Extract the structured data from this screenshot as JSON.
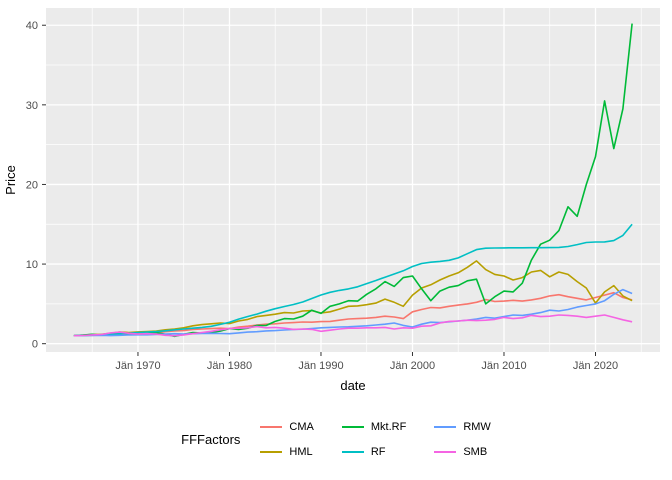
{
  "chart_data": {
    "type": "line",
    "xlabel": "date",
    "ylabel": "Price",
    "legend_title": "FFFactors",
    "x_tick_labels": [
      "Jän 1970",
      "Jän 1980",
      "Jän 1990",
      "Jän 2000",
      "Jän 2010",
      "Jän 2020"
    ],
    "x_tick_years": [
      1970,
      1980,
      1990,
      2000,
      2010,
      2020
    ],
    "x_minor_years": [
      1965,
      1975,
      1985,
      1995,
      2005,
      2015,
      2025
    ],
    "y_ticks": [
      0,
      10,
      20,
      30,
      40
    ],
    "y_minor": [
      5,
      15,
      25,
      35
    ],
    "panel_bg": "#EBEBEB",
    "grid_color": "#FFFFFF",
    "tick_label_color": "#4D4D4D",
    "axis_title_color": "#000000",
    "years": [
      1963,
      1964,
      1965,
      1966,
      1967,
      1968,
      1969,
      1970,
      1971,
      1972,
      1973,
      1974,
      1975,
      1976,
      1977,
      1978,
      1979,
      1980,
      1981,
      1982,
      1983,
      1984,
      1985,
      1986,
      1987,
      1988,
      1989,
      1990,
      1991,
      1992,
      1993,
      1994,
      1995,
      1996,
      1997,
      1998,
      1999,
      2000,
      2001,
      2002,
      2003,
      2004,
      2005,
      2006,
      2007,
      2008,
      2009,
      2010,
      2011,
      2012,
      2013,
      2014,
      2015,
      2016,
      2017,
      2018,
      2019,
      2020,
      2021,
      2022,
      2023,
      2024
    ],
    "series": [
      {
        "name": "CMA",
        "color": "#F8766D",
        "values": [
          1.0,
          1.02,
          1.05,
          1.1,
          1.12,
          1.2,
          1.25,
          1.32,
          1.33,
          1.36,
          1.5,
          1.6,
          1.65,
          1.8,
          1.85,
          1.9,
          1.95,
          1.88,
          2.1,
          2.2,
          2.35,
          2.45,
          2.5,
          2.6,
          2.65,
          2.72,
          2.7,
          2.78,
          2.8,
          2.95,
          3.1,
          3.15,
          3.2,
          3.3,
          3.45,
          3.35,
          3.15,
          4.0,
          4.3,
          4.55,
          4.5,
          4.7,
          4.85,
          5.0,
          5.2,
          5.55,
          5.3,
          5.35,
          5.45,
          5.35,
          5.5,
          5.7,
          6.0,
          6.15,
          5.9,
          5.7,
          5.5,
          5.8,
          6.1,
          6.4,
          5.8,
          5.5
        ]
      },
      {
        "name": "HML",
        "color": "#B79F00",
        "values": [
          1.0,
          1.08,
          1.15,
          1.18,
          1.3,
          1.45,
          1.4,
          1.48,
          1.52,
          1.58,
          1.75,
          1.85,
          2.0,
          2.25,
          2.4,
          2.5,
          2.6,
          2.52,
          2.85,
          3.05,
          3.4,
          3.55,
          3.7,
          3.9,
          3.85,
          4.1,
          4.15,
          3.85,
          4.0,
          4.35,
          4.7,
          4.75,
          4.9,
          5.1,
          5.6,
          5.2,
          4.7,
          6.1,
          7.0,
          7.4,
          8.0,
          8.5,
          8.9,
          9.6,
          10.4,
          9.3,
          8.7,
          8.5,
          8.0,
          8.3,
          9.0,
          9.2,
          8.4,
          9.0,
          8.7,
          7.8,
          7.0,
          5.1,
          6.5,
          7.3,
          6.0,
          5.4
        ]
      },
      {
        "name": "Mkt.RF",
        "color": "#00BA38",
        "values": [
          1.0,
          1.08,
          1.18,
          1.06,
          1.3,
          1.4,
          1.2,
          1.15,
          1.28,
          1.4,
          1.18,
          0.92,
          1.18,
          1.4,
          1.33,
          1.4,
          1.58,
          1.9,
          1.78,
          1.95,
          2.3,
          2.28,
          2.8,
          3.15,
          3.1,
          3.45,
          4.2,
          3.8,
          4.7,
          5.0,
          5.4,
          5.35,
          6.2,
          6.9,
          7.8,
          7.2,
          8.3,
          8.5,
          6.9,
          5.4,
          6.6,
          7.1,
          7.3,
          7.9,
          8.1,
          5.0,
          5.9,
          6.6,
          6.5,
          7.6,
          10.5,
          12.5,
          13.0,
          14.2,
          17.2,
          16.0,
          20.0,
          23.5,
          30.5,
          24.5,
          29.5,
          40.2
        ]
      },
      {
        "name": "RF",
        "color": "#00BFC4",
        "values": [
          1.0,
          1.04,
          1.08,
          1.13,
          1.18,
          1.24,
          1.32,
          1.4,
          1.46,
          1.52,
          1.62,
          1.75,
          1.85,
          1.94,
          2.04,
          2.19,
          2.42,
          2.69,
          3.09,
          3.42,
          3.72,
          4.08,
          4.4,
          4.67,
          4.92,
          5.24,
          5.68,
          6.12,
          6.46,
          6.69,
          6.88,
          7.15,
          7.55,
          7.94,
          8.35,
          8.75,
          9.16,
          9.7,
          10.07,
          10.24,
          10.34,
          10.47,
          10.78,
          11.3,
          11.82,
          12.0,
          12.02,
          12.03,
          12.04,
          12.05,
          12.06,
          12.06,
          12.07,
          12.1,
          12.21,
          12.44,
          12.71,
          12.77,
          12.78,
          12.95,
          13.6,
          15.0
        ]
      },
      {
        "name": "RMW",
        "color": "#619CFF",
        "values": [
          1.0,
          1.02,
          1.03,
          1.05,
          1.02,
          1.05,
          1.1,
          1.12,
          1.12,
          1.15,
          1.2,
          1.25,
          1.22,
          1.25,
          1.28,
          1.3,
          1.28,
          1.25,
          1.35,
          1.45,
          1.5,
          1.6,
          1.65,
          1.72,
          1.78,
          1.82,
          1.9,
          2.0,
          2.05,
          2.1,
          2.12,
          2.18,
          2.25,
          2.35,
          2.45,
          2.6,
          2.3,
          2.1,
          2.45,
          2.7,
          2.65,
          2.75,
          2.85,
          2.95,
          3.1,
          3.3,
          3.2,
          3.4,
          3.6,
          3.55,
          3.7,
          3.9,
          4.2,
          4.1,
          4.3,
          4.6,
          4.8,
          5.0,
          5.4,
          6.2,
          6.8,
          6.3
        ]
      },
      {
        "name": "SMB",
        "color": "#F564E3",
        "values": [
          1.0,
          1.03,
          1.1,
          1.15,
          1.35,
          1.45,
          1.3,
          1.2,
          1.25,
          1.2,
          1.05,
          1.0,
          1.1,
          1.25,
          1.4,
          1.55,
          1.75,
          1.9,
          1.95,
          2.0,
          2.15,
          2.0,
          2.05,
          1.95,
          1.8,
          1.85,
          1.8,
          1.55,
          1.7,
          1.85,
          1.95,
          1.95,
          2.0,
          2.0,
          2.05,
          1.85,
          2.0,
          1.95,
          2.2,
          2.25,
          2.6,
          2.8,
          2.85,
          2.95,
          2.9,
          2.95,
          3.05,
          3.3,
          3.15,
          3.25,
          3.55,
          3.4,
          3.45,
          3.6,
          3.55,
          3.45,
          3.3,
          3.45,
          3.6,
          3.3,
          3.0,
          2.75
        ]
      }
    ],
    "legend_order": [
      [
        "CMA",
        "HML"
      ],
      [
        "Mkt.RF",
        "RF"
      ],
      [
        "RMW",
        "SMB"
      ]
    ]
  }
}
